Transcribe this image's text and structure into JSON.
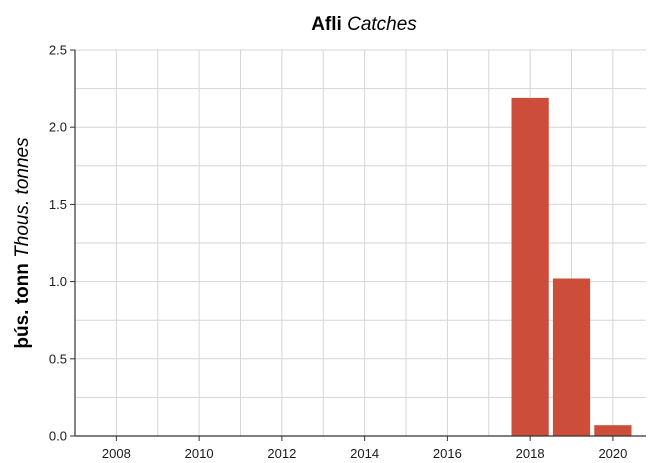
{
  "chart_data": {
    "type": "bar",
    "title_main": "Afli",
    "title_sub": "Catches",
    "ylabel_main": "þús. tonn",
    "ylabel_sub": "Thous. tonnes",
    "xlabel": "",
    "x": [
      2018,
      2019,
      2020
    ],
    "values": [
      2.19,
      1.02,
      0.07
    ],
    "xlim": [
      2007,
      2020.8
    ],
    "ylim": [
      0,
      2.5
    ],
    "x_ticks": [
      "2008",
      "2010",
      "2012",
      "2014",
      "2016",
      "2018",
      "2020"
    ],
    "y_ticks": [
      "0.0",
      "0.5",
      "1.0",
      "1.5",
      "2.0",
      "2.5"
    ],
    "grid": true,
    "bar_color": "#cc4e3a"
  }
}
